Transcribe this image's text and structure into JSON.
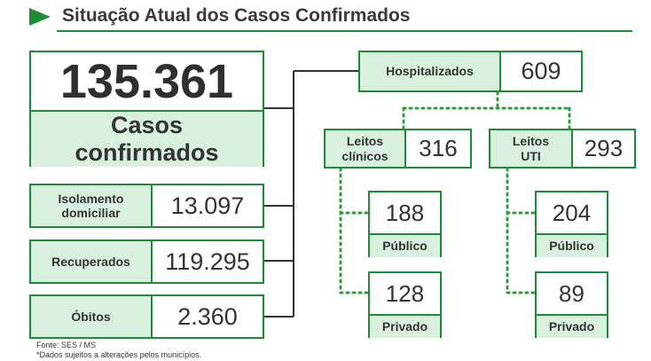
{
  "header": {
    "title": "Situação Atual dos Casos Confirmados",
    "arrow_icon": "play-triangle-icon"
  },
  "confirmed": {
    "value": "135.361",
    "label_line1": "Casos",
    "label_line2": "confirmados"
  },
  "left_items": [
    {
      "label_line1": "Isolamento",
      "label_line2": "domiciliar",
      "value": "13.097"
    },
    {
      "label_line1": "Recuperados",
      "label_line2": "",
      "value": "119.295"
    },
    {
      "label_line1": "Óbitos",
      "label_line2": "",
      "value": "2.360"
    }
  ],
  "hospitalized": {
    "label": "Hospitalizados",
    "value": "609"
  },
  "clinical_beds": {
    "label_line1": "Leitos",
    "label_line2": "clínicos",
    "value": "316",
    "public": {
      "label": "Público",
      "value": "188"
    },
    "private": {
      "label": "Privado",
      "value": "128"
    }
  },
  "icu_beds": {
    "label_line1": "Leitos",
    "label_line2": "UTI",
    "value": "293",
    "public": {
      "label": "Público",
      "value": "204"
    },
    "private": {
      "label": "Privado",
      "value": "89"
    }
  },
  "footnote": {
    "source": "Fonte: SES / MS",
    "disclaimer": "*Dados sujeitos a alterações pelos municípios."
  },
  "colors": {
    "border_green": "#1e8c34",
    "label_fill": "#d8f0dd",
    "dotted_green": "#2a9d3c",
    "text": "#333333"
  }
}
